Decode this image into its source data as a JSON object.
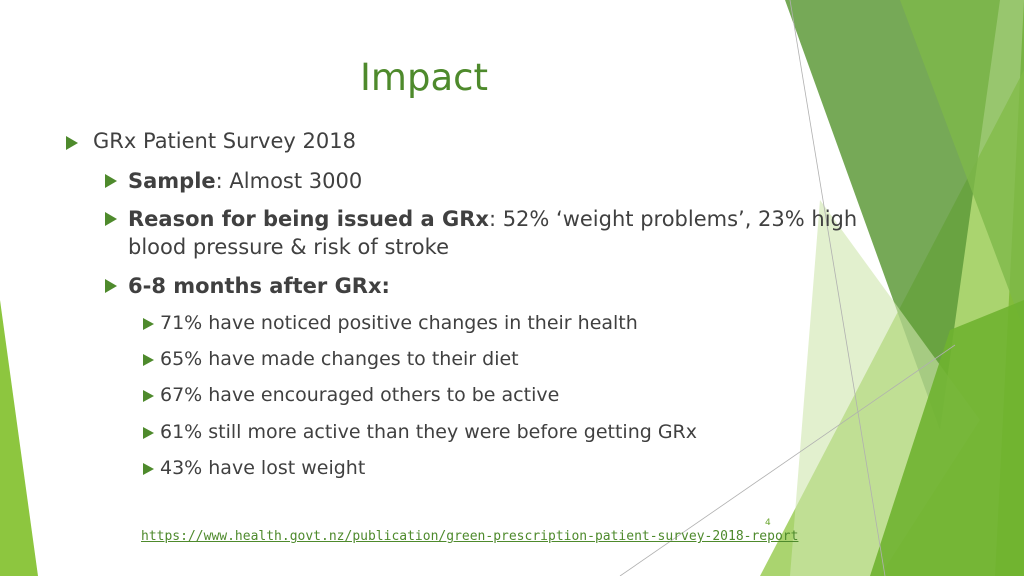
{
  "slide": {
    "title": "Impact",
    "bullets": {
      "survey": "GRx Patient Survey 2018",
      "sample_label": "Sample",
      "sample_value": ": Almost 3000",
      "reason_label": "Reason for being issued a GRx",
      "reason_value": ": 52% ‘weight problems’, 23% high blood pressure & risk of stroke",
      "after_label": "6-8 months after GRx:",
      "items": [
        "71% have noticed positive changes in their health",
        "65% have made changes to their diet",
        "67% have encouraged others to be active",
        "61%  still more active than they were before getting GRx",
        "43% have lost weight"
      ]
    },
    "link": "https://www.health.govt.nz/publication/green-prescription-patient-survey-2018-report",
    "page_number": "4"
  },
  "colors": {
    "accent": "#4e8a2c",
    "light_green": "#8dc63f",
    "text": "#404040"
  }
}
